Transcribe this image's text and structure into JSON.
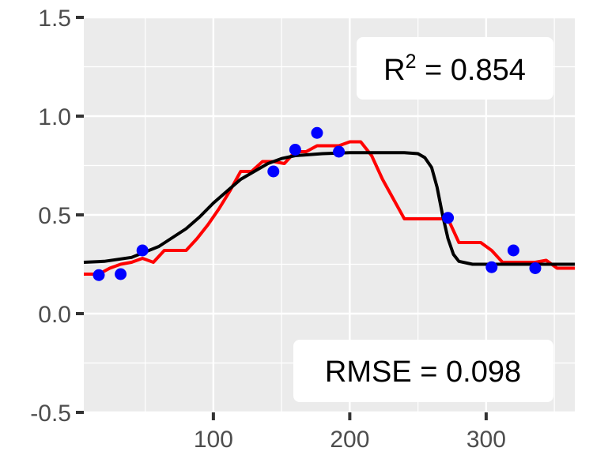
{
  "chart_data": {
    "type": "scatter",
    "title": "",
    "xlabel": "",
    "ylabel": "",
    "xlim": [
      5,
      365
    ],
    "ylim": [
      -0.5,
      1.5
    ],
    "x_ticks": [
      100,
      200,
      300
    ],
    "x_tick_labels": [
      "100",
      "200",
      "300"
    ],
    "y_ticks": [
      -0.5,
      0.0,
      0.5,
      1.0,
      1.5
    ],
    "y_tick_labels": [
      "-0.5",
      "0.0",
      "0.5",
      "1.0",
      "1.5"
    ],
    "grid": true,
    "background": "#EBEBEB",
    "annotations": {
      "r2": {
        "prefix": "R",
        "sup": "2",
        "suffix": " = 0.854",
        "position": "top-right"
      },
      "rmse": {
        "text": "RMSE = 0.098",
        "position": "bottom-right"
      }
    },
    "points": {
      "color": "#0000FF",
      "x": [
        16,
        32,
        48,
        144,
        160,
        176,
        192,
        272,
        304,
        320,
        336
      ],
      "y": [
        0.195,
        0.2,
        0.32,
        0.72,
        0.83,
        0.915,
        0.82,
        0.485,
        0.235,
        0.32,
        0.23
      ]
    },
    "series": [
      {
        "color": "#FF0000",
        "style": "step-line",
        "x": [
          5,
          16,
          24,
          32,
          40,
          48,
          56,
          64,
          72,
          80,
          88,
          96,
          104,
          112,
          120,
          128,
          136,
          144,
          152,
          160,
          168,
          176,
          184,
          192,
          200,
          208,
          216,
          224,
          232,
          240,
          248,
          256,
          264,
          272,
          280,
          288,
          296,
          304,
          312,
          320,
          328,
          336,
          344,
          352,
          365
        ],
        "y": [
          0.2,
          0.2,
          0.23,
          0.25,
          0.26,
          0.28,
          0.26,
          0.32,
          0.32,
          0.32,
          0.38,
          0.45,
          0.53,
          0.62,
          0.72,
          0.72,
          0.77,
          0.77,
          0.76,
          0.82,
          0.82,
          0.85,
          0.85,
          0.85,
          0.87,
          0.87,
          0.8,
          0.68,
          0.58,
          0.48,
          0.48,
          0.48,
          0.48,
          0.48,
          0.36,
          0.36,
          0.36,
          0.32,
          0.26,
          0.26,
          0.26,
          0.26,
          0.27,
          0.23,
          0.23
        ]
      },
      {
        "color": "#000000",
        "style": "smooth-line",
        "x": [
          5,
          20,
          40,
          60,
          80,
          90,
          100,
          110,
          120,
          130,
          140,
          150,
          160,
          180,
          200,
          220,
          240,
          250,
          255,
          260,
          264,
          268,
          272,
          276,
          280,
          290,
          300,
          320,
          365
        ],
        "y": [
          0.26,
          0.265,
          0.285,
          0.34,
          0.43,
          0.49,
          0.56,
          0.62,
          0.68,
          0.72,
          0.76,
          0.785,
          0.8,
          0.81,
          0.815,
          0.815,
          0.815,
          0.81,
          0.79,
          0.74,
          0.64,
          0.5,
          0.38,
          0.3,
          0.265,
          0.25,
          0.25,
          0.25,
          0.25
        ]
      }
    ]
  }
}
